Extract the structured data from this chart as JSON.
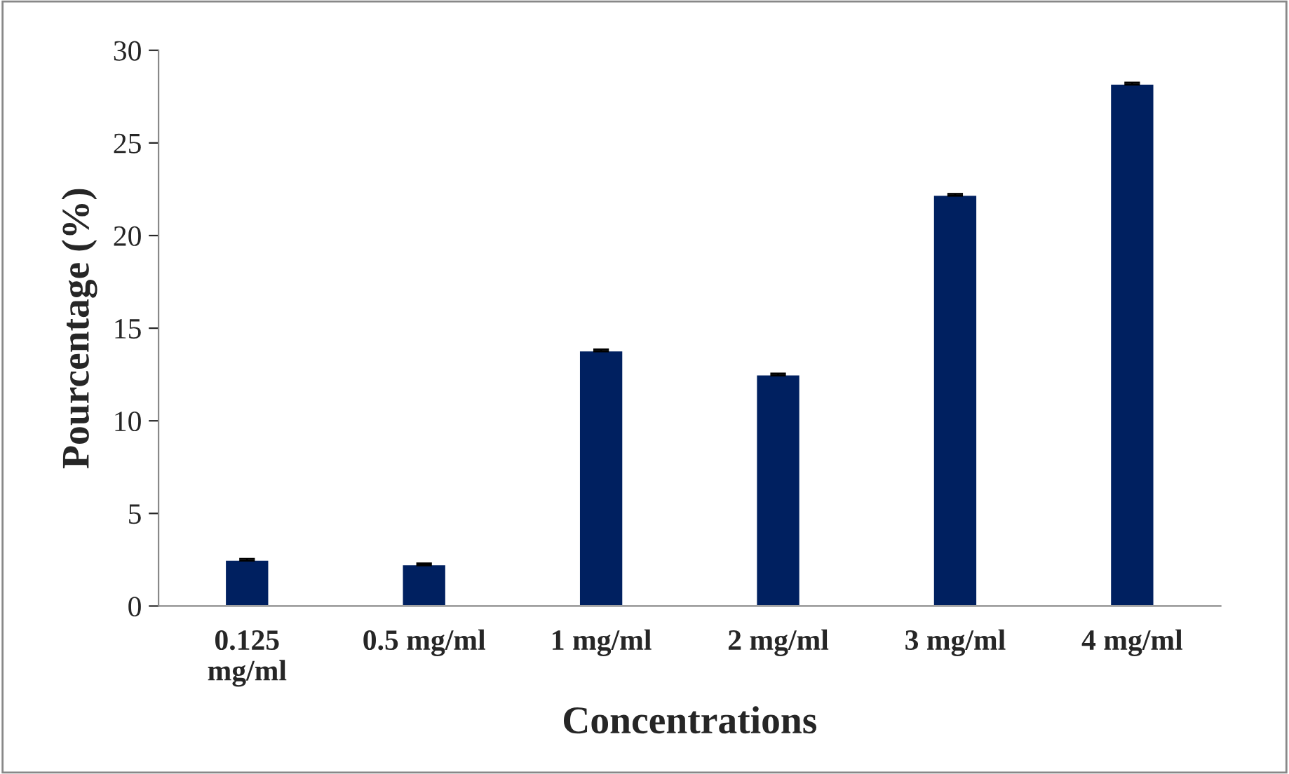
{
  "chart_data": {
    "type": "bar",
    "xlabel": "Concentrations",
    "ylabel": "Pourcentage (%)",
    "categories": [
      "0.125\nmg/ml",
      "0.5 mg/ml",
      "1 mg/ml",
      "2 mg/ml",
      "3 mg/ml",
      "4 mg/ml"
    ],
    "values": [
      2.5,
      2.25,
      13.8,
      12.5,
      22.2,
      28.2
    ],
    "errors": [
      0.05,
      0.05,
      0.05,
      0.05,
      0.05,
      0.05
    ],
    "color": "#002060",
    "ylim": [
      0,
      30
    ],
    "yticks": [
      0,
      5,
      10,
      15,
      20,
      25,
      30
    ],
    "grid": false,
    "legend": false
  }
}
